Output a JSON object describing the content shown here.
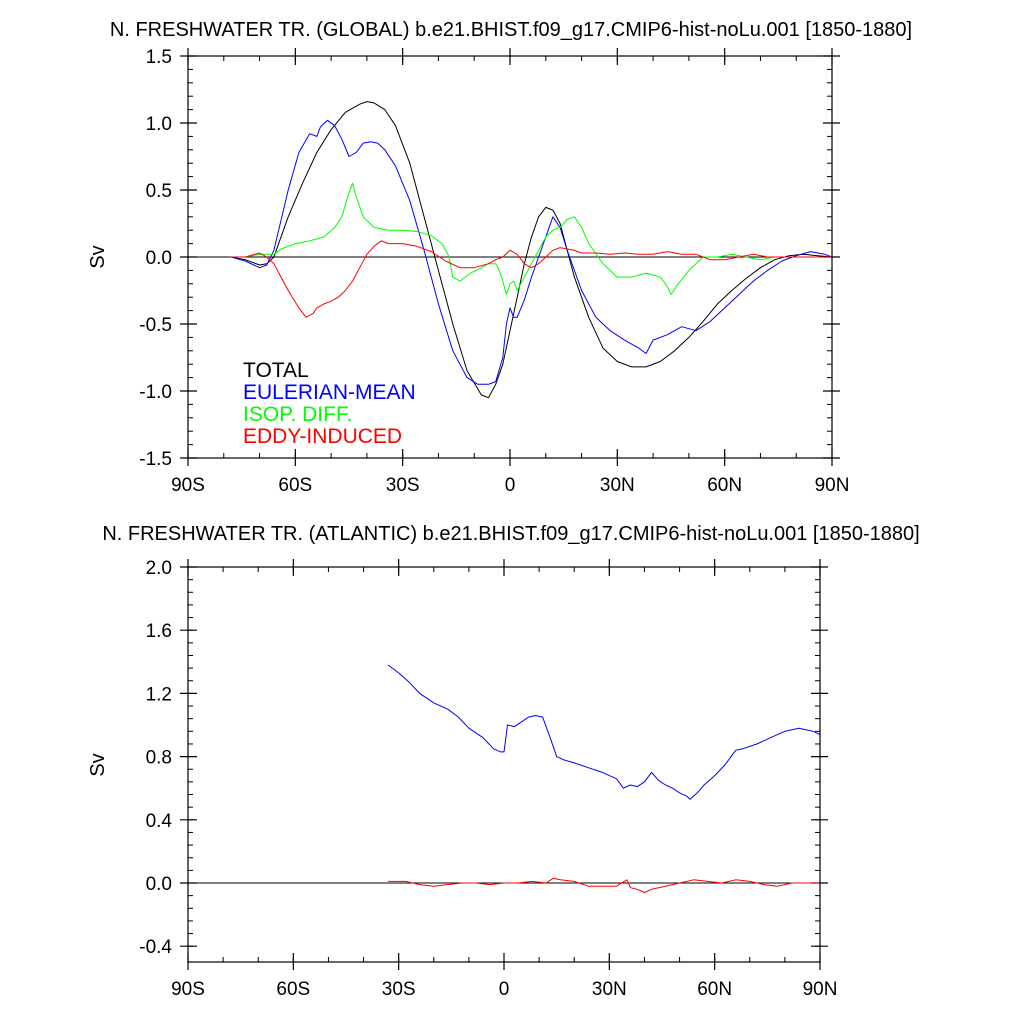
{
  "chart_data": [
    {
      "type": "line",
      "title": "N. FRESHWATER TR. (GLOBAL) b.e21.BHIST.f09_g17.CMIP6-hist-noLu.001 [1850-1880]",
      "xlabel": "",
      "ylabel": "Sv",
      "xlim": [
        -90,
        90
      ],
      "ylim": [
        -1.5,
        1.5
      ],
      "x_ticks": [
        -90,
        -60,
        -30,
        0,
        30,
        60,
        90
      ],
      "x_tick_labels": [
        "90S",
        "60S",
        "30S",
        "0",
        "30N",
        "60N",
        "90N"
      ],
      "y_ticks": [
        -1.5,
        -1.0,
        -0.5,
        0.0,
        0.5,
        1.0,
        1.5
      ],
      "y_tick_labels": [
        "-1.5",
        "-1.0",
        "-0.5",
        "0.0",
        "0.5",
        "1.0",
        "1.5"
      ],
      "grid": false,
      "zero_line": true,
      "legend": "bottom-left",
      "series": [
        {
          "name": "TOTAL",
          "color": "#000000",
          "x": [
            -78,
            -74,
            -70,
            -68,
            -66,
            -62,
            -58,
            -54,
            -50,
            -46,
            -42,
            -40,
            -38,
            -35,
            -32,
            -28,
            -24,
            -20,
            -16,
            -12,
            -8,
            -6,
            -4,
            -2,
            0,
            2,
            4,
            6,
            8,
            10,
            12,
            14,
            16,
            18,
            22,
            26,
            30,
            34,
            38,
            42,
            46,
            50,
            54,
            58,
            62,
            66,
            70,
            74,
            78,
            82,
            86,
            90
          ],
          "y": [
            0.0,
            -0.02,
            -0.06,
            -0.05,
            0.0,
            0.3,
            0.55,
            0.78,
            0.95,
            1.08,
            1.14,
            1.16,
            1.15,
            1.1,
            0.98,
            0.7,
            0.3,
            -0.1,
            -0.5,
            -0.85,
            -1.03,
            -1.05,
            -0.95,
            -0.8,
            -0.55,
            -0.3,
            -0.05,
            0.15,
            0.3,
            0.37,
            0.35,
            0.25,
            0.05,
            -0.15,
            -0.45,
            -0.68,
            -0.78,
            -0.82,
            -0.82,
            -0.78,
            -0.7,
            -0.6,
            -0.48,
            -0.35,
            -0.25,
            -0.16,
            -0.08,
            -0.02,
            0.01,
            0.02,
            0.01,
            0.0
          ]
        },
        {
          "name": "EULERIAN-MEAN",
          "color": "#0000ff",
          "x": [
            -78,
            -74,
            -70,
            -68,
            -66,
            -62,
            -59,
            -56,
            -54,
            -53,
            -51,
            -49,
            -47,
            -45,
            -43,
            -41,
            -39,
            -37,
            -35,
            -32,
            -28,
            -24,
            -20,
            -16,
            -12,
            -9,
            -6,
            -4,
            -2,
            -1,
            0,
            1,
            2,
            4,
            6,
            8,
            10,
            12,
            14,
            16,
            20,
            24,
            28,
            32,
            36,
            38,
            40,
            44,
            48,
            52,
            56,
            60,
            64,
            68,
            72,
            76,
            80,
            84,
            88,
            90
          ],
          "y": [
            0.0,
            -0.03,
            -0.08,
            -0.06,
            0.05,
            0.5,
            0.78,
            0.92,
            0.9,
            0.97,
            1.02,
            0.98,
            0.88,
            0.75,
            0.78,
            0.85,
            0.86,
            0.85,
            0.8,
            0.68,
            0.42,
            0.05,
            -0.35,
            -0.7,
            -0.9,
            -0.95,
            -0.95,
            -0.93,
            -0.75,
            -0.5,
            -0.38,
            -0.45,
            -0.45,
            -0.32,
            -0.15,
            0.0,
            0.15,
            0.3,
            0.22,
            0.05,
            -0.25,
            -0.45,
            -0.55,
            -0.62,
            -0.68,
            -0.72,
            -0.62,
            -0.58,
            -0.52,
            -0.55,
            -0.48,
            -0.38,
            -0.28,
            -0.18,
            -0.1,
            -0.03,
            0.01,
            0.04,
            0.02,
            0.0
          ]
        },
        {
          "name": "ISOP. DIFF.",
          "color": "#00ff00",
          "x": [
            -78,
            -74,
            -70,
            -66,
            -64,
            -60,
            -56,
            -52,
            -49,
            -47,
            -45,
            -44,
            -43,
            -41,
            -38,
            -34,
            -30,
            -26,
            -22,
            -19,
            -17,
            -16,
            -14,
            -11,
            -8,
            -6,
            -4,
            -3,
            -2,
            -1,
            0,
            1,
            2,
            4,
            6,
            8,
            10,
            12,
            14,
            16,
            18,
            20,
            22,
            26,
            30,
            34,
            38,
            42,
            44,
            45,
            47,
            50,
            54,
            58,
            62,
            66,
            70,
            74,
            78,
            82,
            86,
            90
          ],
          "y": [
            0.0,
            0.0,
            0.02,
            0.02,
            0.06,
            0.1,
            0.12,
            0.15,
            0.22,
            0.3,
            0.48,
            0.55,
            0.45,
            0.3,
            0.22,
            0.2,
            0.2,
            0.19,
            0.16,
            0.1,
            0.0,
            -0.15,
            -0.18,
            -0.12,
            -0.08,
            -0.05,
            -0.05,
            -0.1,
            -0.18,
            -0.28,
            -0.2,
            -0.18,
            -0.25,
            -0.15,
            -0.05,
            0.05,
            0.15,
            0.2,
            0.22,
            0.28,
            0.3,
            0.22,
            0.1,
            -0.05,
            -0.15,
            -0.15,
            -0.12,
            -0.15,
            -0.22,
            -0.28,
            -0.2,
            -0.1,
            0.0,
            0.0,
            0.02,
            0.0,
            -0.02,
            0.0,
            0.0,
            0.0,
            0.0,
            0.0
          ]
        },
        {
          "name": "EDDY-INDUCED",
          "color": "#ff0000",
          "x": [
            -78,
            -74,
            -70,
            -68,
            -66,
            -64,
            -62,
            -59,
            -57,
            -55,
            -54,
            -52,
            -50,
            -48,
            -46,
            -44,
            -42,
            -40,
            -38,
            -36,
            -34,
            -30,
            -26,
            -22,
            -18,
            -14,
            -10,
            -6,
            -4,
            -2,
            0,
            2,
            4,
            6,
            8,
            10,
            12,
            14,
            16,
            18,
            20,
            24,
            28,
            32,
            36,
            40,
            44,
            48,
            52,
            56,
            60,
            64,
            68,
            72,
            76,
            80,
            84,
            88,
            90
          ],
          "y": [
            0.0,
            0.0,
            0.03,
            0.0,
            -0.05,
            -0.15,
            -0.25,
            -0.38,
            -0.45,
            -0.42,
            -0.38,
            -0.35,
            -0.33,
            -0.3,
            -0.25,
            -0.18,
            -0.08,
            0.02,
            0.08,
            0.12,
            0.1,
            0.1,
            0.08,
            0.04,
            -0.03,
            -0.08,
            -0.08,
            -0.05,
            -0.02,
            0.0,
            0.05,
            0.02,
            -0.05,
            -0.08,
            -0.05,
            0.0,
            0.05,
            0.07,
            0.06,
            0.05,
            0.03,
            0.03,
            0.02,
            0.03,
            0.02,
            0.02,
            0.04,
            0.02,
            0.02,
            -0.02,
            -0.02,
            0.0,
            0.02,
            0.0,
            0.0,
            0.0,
            0.0,
            0.0,
            0.0
          ]
        }
      ]
    },
    {
      "type": "line",
      "title": "N. FRESHWATER TR. (ATLANTIC) b.e21.BHIST.f09_g17.CMIP6-hist-noLu.001 [1850-1880]",
      "xlabel": "",
      "ylabel": "Sv",
      "xlim": [
        -90,
        90
      ],
      "ylim": [
        -0.5,
        2.0
      ],
      "x_ticks": [
        -90,
        -60,
        -30,
        0,
        30,
        60,
        90
      ],
      "x_tick_labels": [
        "90S",
        "60S",
        "30S",
        "0",
        "30N",
        "60N",
        "90N"
      ],
      "y_ticks": [
        -0.4,
        0.0,
        0.4,
        0.8,
        1.2,
        1.6,
        2.0
      ],
      "y_tick_labels": [
        "-0.4",
        "0.0",
        "0.4",
        "0.8",
        "1.2",
        "1.6",
        "2.0"
      ],
      "grid": false,
      "zero_line": true,
      "legend": "none",
      "series": [
        {
          "name": "EULERIAN-MEAN",
          "color": "#0000ff",
          "x": [
            -33,
            -30,
            -27,
            -24,
            -20,
            -16,
            -13,
            -10,
            -6,
            -3,
            -1,
            0,
            1,
            3,
            5,
            7,
            9,
            11,
            13,
            15,
            17,
            20,
            24,
            28,
            32,
            34,
            36,
            38,
            40,
            42,
            44,
            46,
            48,
            50,
            52,
            53,
            55,
            57,
            60,
            63,
            66,
            68,
            72,
            76,
            80,
            84,
            88,
            90
          ],
          "y": [
            1.38,
            1.33,
            1.27,
            1.2,
            1.14,
            1.1,
            1.05,
            0.98,
            0.92,
            0.85,
            0.83,
            0.83,
            1.0,
            0.99,
            1.02,
            1.05,
            1.06,
            1.05,
            0.93,
            0.8,
            0.78,
            0.76,
            0.73,
            0.7,
            0.66,
            0.6,
            0.62,
            0.61,
            0.64,
            0.7,
            0.65,
            0.62,
            0.6,
            0.57,
            0.55,
            0.53,
            0.57,
            0.62,
            0.68,
            0.75,
            0.84,
            0.85,
            0.88,
            0.92,
            0.96,
            0.98,
            0.96,
            0.94
          ]
        },
        {
          "name": "EDDY-INDUCED",
          "color": "#ff0000",
          "x": [
            -33,
            -28,
            -24,
            -20,
            -16,
            -12,
            -8,
            -4,
            0,
            4,
            8,
            12,
            14,
            16,
            20,
            24,
            28,
            32,
            35,
            36,
            38,
            40,
            42,
            46,
            50,
            54,
            58,
            62,
            66,
            70,
            74,
            78,
            82,
            86,
            90
          ],
          "y": [
            0.01,
            0.01,
            -0.01,
            -0.02,
            -0.01,
            0.0,
            0.0,
            -0.01,
            0.0,
            0.0,
            0.01,
            0.0,
            0.03,
            0.02,
            0.01,
            -0.02,
            -0.02,
            -0.02,
            0.02,
            -0.03,
            -0.04,
            -0.06,
            -0.04,
            -0.02,
            0.0,
            0.02,
            0.01,
            0.0,
            0.02,
            0.01,
            -0.01,
            -0.02,
            0.0,
            0.0,
            0.0
          ]
        }
      ]
    }
  ]
}
